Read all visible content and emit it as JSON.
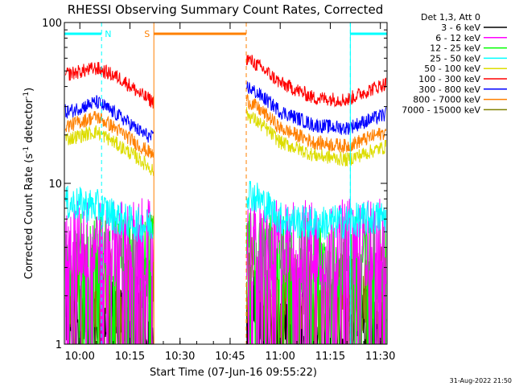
{
  "chart_data": {
    "type": "line",
    "title": "RHESSI Observing Summary Count Rates, Corrected",
    "xlabel": "Start Time (07-Jun-16 09:55:22)",
    "ylabel_parts": {
      "before": "Corrected Count Rate (s",
      "sup1": "-1",
      "mid": " detector",
      "sup2": "-1",
      "after": ")"
    },
    "ylim": [
      1,
      100
    ],
    "y_scale": "log",
    "y_ticks": [
      "1",
      "10",
      "100"
    ],
    "x_range": [
      "09:55:22",
      "11:32:00"
    ],
    "x_ticks": [
      "10:00",
      "10:15",
      "10:30",
      "10:45",
      "11:00",
      "11:15",
      "11:30"
    ],
    "legend": {
      "header": "Det 1,3, Att 0",
      "entries": [
        {
          "label": "3 - 6 keV",
          "color": "#000000"
        },
        {
          "label": "6 - 12 keV",
          "color": "#ff00ff"
        },
        {
          "label": "12 - 25 keV",
          "color": "#00ff00"
        },
        {
          "label": "25 - 50 keV",
          "color": "#00ffff"
        },
        {
          "label": "50 - 100 keV",
          "color": "#dddd00"
        },
        {
          "label": "100 - 300 keV",
          "color": "#ff0000"
        },
        {
          "label": "300 - 800 keV",
          "color": "#0000ff"
        },
        {
          "label": "800 - 7000 keV",
          "color": "#ff8000"
        },
        {
          "label": "7000 - 15000 keV",
          "color": "#808000"
        }
      ]
    },
    "markers": [
      {
        "label": "N",
        "color": "#00ffff",
        "start": "09:55:22",
        "end": "10:06:30"
      },
      {
        "label": "S",
        "color": "#ff8000",
        "start": "10:22:10",
        "end": "10:49:50"
      },
      {
        "label": "",
        "color": "#00ffff",
        "start": "11:21:00",
        "end": "11:32:00"
      }
    ],
    "gaps": [
      {
        "start": "10:22:10",
        "end": "10:49:50"
      }
    ],
    "series": [
      {
        "name": "100 - 300 keV",
        "color": "#ff0000",
        "x": [
          "09:57",
          "10:05",
          "10:12",
          "10:18",
          "10:22",
          "10:50",
          "11:00",
          "11:10",
          "11:20",
          "11:32"
        ],
        "y": [
          48,
          52,
          45,
          36,
          32,
          60,
          42,
          34,
          33,
          42
        ]
      },
      {
        "name": "300 - 800 keV",
        "color": "#0000ff",
        "x": [
          "09:57",
          "10:05",
          "10:12",
          "10:18",
          "10:22",
          "10:50",
          "11:00",
          "11:10",
          "11:20",
          "11:32"
        ],
        "y": [
          28,
          32,
          26,
          21,
          19,
          40,
          28,
          23,
          22,
          27
        ]
      },
      {
        "name": "800 - 7000 keV",
        "color": "#ff8000",
        "x": [
          "09:57",
          "10:05",
          "10:12",
          "10:18",
          "10:22",
          "10:50",
          "11:00",
          "11:10",
          "11:20",
          "11:32"
        ],
        "y": [
          23,
          26,
          21,
          17,
          15,
          33,
          22,
          18,
          17,
          21
        ]
      },
      {
        "name": "50 - 100 keV",
        "color": "#dddd00",
        "x": [
          "09:57",
          "10:05",
          "10:12",
          "10:18",
          "10:22",
          "10:50",
          "11:00",
          "11:10",
          "11:20",
          "11:32"
        ],
        "y": [
          19,
          21,
          17,
          14,
          12,
          27,
          18,
          15,
          14,
          17
        ]
      },
      {
        "name": "25 - 50 keV",
        "color": "#00ffff",
        "x": [
          "09:57",
          "10:05",
          "10:12",
          "10:18",
          "10:22",
          "10:50",
          "11:00",
          "11:10",
          "11:20",
          "11:32"
        ],
        "y": [
          7.5,
          7.2,
          6.0,
          5.5,
          5.5,
          9.0,
          6.0,
          5.6,
          5.8,
          6.2
        ]
      },
      {
        "name": "6 - 12 keV",
        "color": "#ff00ff",
        "x": [
          "09:57",
          "10:10",
          "10:22",
          "10:50",
          "11:10",
          "11:32"
        ],
        "y": [
          4.3,
          4.3,
          4.3,
          4.3,
          4.3,
          4.3
        ]
      },
      {
        "name": "12 - 25 keV",
        "color": "#00ff00",
        "x": [
          "09:57",
          "10:10",
          "10:22",
          "10:50",
          "11:10",
          "11:32"
        ],
        "y": [
          3.5,
          3.5,
          3.4,
          3.6,
          3.4,
          3.4
        ]
      },
      {
        "name": "7000 - 15000 keV",
        "color": "#808000",
        "x": [
          "09:57",
          "10:10",
          "10:22",
          "10:50",
          "11:10",
          "11:32"
        ],
        "y": [
          2.4,
          2.3,
          2.2,
          2.5,
          2.2,
          2.2
        ]
      },
      {
        "name": "3 - 6 keV",
        "color": "#000000",
        "x": [
          "09:57",
          "10:10",
          "10:22",
          "10:50",
          "11:10",
          "11:32"
        ],
        "y": [
          1.6,
          1.5,
          1.4,
          1.6,
          1.3,
          1.2
        ]
      }
    ]
  },
  "footer": {
    "timestamp": "31-Aug-2022 21:50"
  }
}
